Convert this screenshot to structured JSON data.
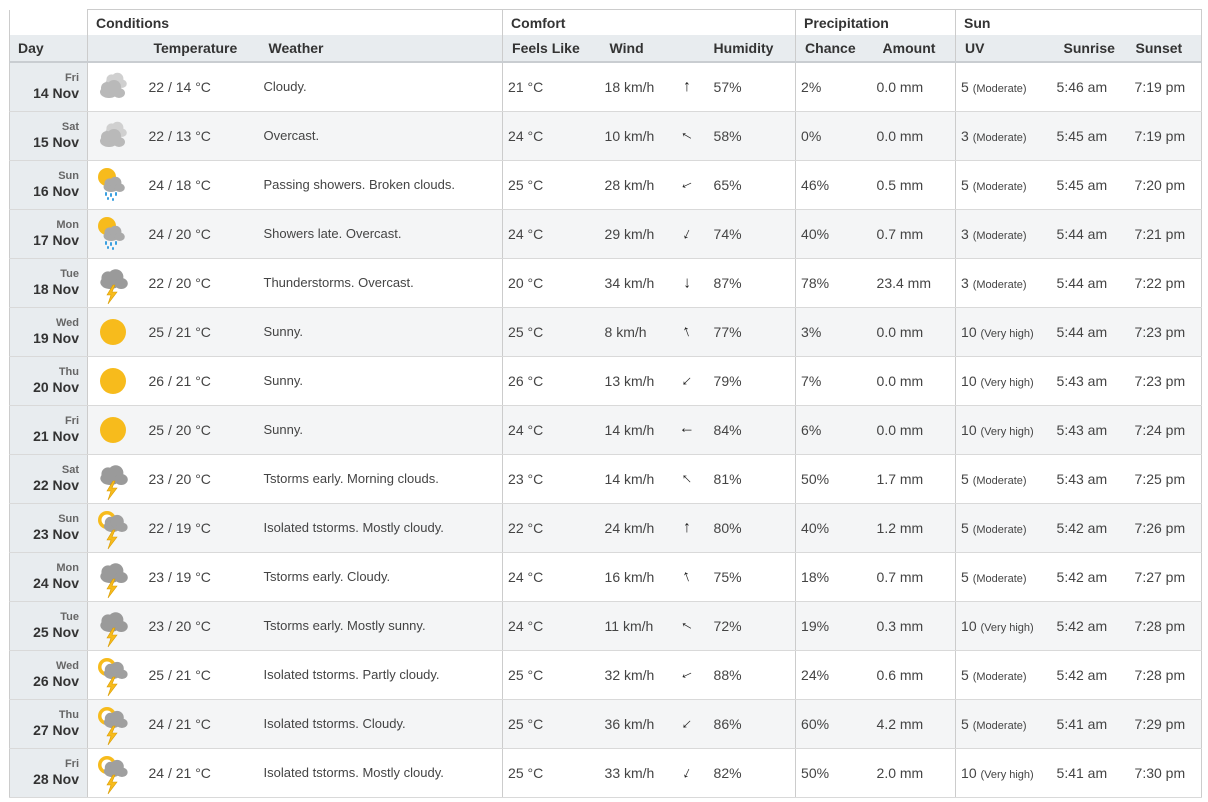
{
  "groups": {
    "conditions": "Conditions",
    "comfort": "Comfort",
    "precipitation": "Precipitation",
    "sun": "Sun"
  },
  "columns": {
    "day": "Day",
    "temperature": "Temperature",
    "weather": "Weather",
    "feels_like": "Feels Like",
    "wind": "Wind",
    "humidity": "Humidity",
    "chance": "Chance",
    "amount": "Amount",
    "uv": "UV",
    "sunrise": "Sunrise",
    "sunset": "Sunset"
  },
  "colors": {
    "header_bg": "#e8ecef",
    "row_alt": "#f4f5f6",
    "sun_yellow": "#f7bb1c",
    "cloud_gray": "#b5b5b5",
    "rain_blue": "#3aa0e0"
  },
  "days": [
    {
      "weekday": "Fri",
      "date": "14 Nov",
      "icon": "cloudy-icon",
      "temp": "22 / 14 °C",
      "weather": "Cloudy.",
      "feels": "21 °C",
      "wind": "18 km/h",
      "wind_dir_deg": 0,
      "humidity": "57%",
      "chance": "2%",
      "amount": "0.0 mm",
      "uv": "5",
      "uv_label": "(Moderate)",
      "sunrise": "5:46 am",
      "sunset": "7:19 pm"
    },
    {
      "weekday": "Sat",
      "date": "15 Nov",
      "icon": "cloudy-icon",
      "temp": "22 / 13 °C",
      "weather": "Overcast.",
      "feels": "24 °C",
      "wind": "10 km/h",
      "wind_dir_deg": -60,
      "humidity": "58%",
      "chance": "0%",
      "amount": "0.0 mm",
      "uv": "3",
      "uv_label": "(Moderate)",
      "sunrise": "5:45 am",
      "sunset": "7:19 pm"
    },
    {
      "weekday": "Sun",
      "date": "16 Nov",
      "icon": "sun-showers-icon",
      "temp": "24 / 18 °C",
      "weather": "Passing showers. Broken clouds.",
      "feels": "25 °C",
      "wind": "28 km/h",
      "wind_dir_deg": -115,
      "humidity": "65%",
      "chance": "46%",
      "amount": "0.5 mm",
      "uv": "5",
      "uv_label": "(Moderate)",
      "sunrise": "5:45 am",
      "sunset": "7:20 pm"
    },
    {
      "weekday": "Mon",
      "date": "17 Nov",
      "icon": "sun-showers-icon",
      "temp": "24 / 20 °C",
      "weather": "Showers late. Overcast.",
      "feels": "24 °C",
      "wind": "29 km/h",
      "wind_dir_deg": -155,
      "humidity": "74%",
      "chance": "40%",
      "amount": "0.7 mm",
      "uv": "3",
      "uv_label": "(Moderate)",
      "sunrise": "5:44 am",
      "sunset": "7:21 pm"
    },
    {
      "weekday": "Tue",
      "date": "18 Nov",
      "icon": "thunderstorm-icon",
      "temp": "22 / 20 °C",
      "weather": "Thunderstorms. Overcast.",
      "feels": "20 °C",
      "wind": "34 km/h",
      "wind_dir_deg": 180,
      "humidity": "87%",
      "chance": "78%",
      "amount": "23.4 mm",
      "uv": "3",
      "uv_label": "(Moderate)",
      "sunrise": "5:44 am",
      "sunset": "7:22 pm"
    },
    {
      "weekday": "Wed",
      "date": "19 Nov",
      "icon": "sun-icon",
      "temp": "25 / 21 °C",
      "weather": "Sunny.",
      "feels": "25 °C",
      "wind": "8 km/h",
      "wind_dir_deg": -20,
      "humidity": "77%",
      "chance": "3%",
      "amount": "0.0 mm",
      "uv": "10",
      "uv_label": "(Very high)",
      "sunrise": "5:44 am",
      "sunset": "7:23 pm"
    },
    {
      "weekday": "Thu",
      "date": "20 Nov",
      "icon": "sun-icon",
      "temp": "26 / 21 °C",
      "weather": "Sunny.",
      "feels": "26 °C",
      "wind": "13 km/h",
      "wind_dir_deg": -135,
      "humidity": "79%",
      "chance": "7%",
      "amount": "0.0 mm",
      "uv": "10",
      "uv_label": "(Very high)",
      "sunrise": "5:43 am",
      "sunset": "7:23 pm"
    },
    {
      "weekday": "Fri",
      "date": "21 Nov",
      "icon": "sun-icon",
      "temp": "25 / 20 °C",
      "weather": "Sunny.",
      "feels": "24 °C",
      "wind": "14 km/h",
      "wind_dir_deg": -90,
      "humidity": "84%",
      "chance": "6%",
      "amount": "0.0 mm",
      "uv": "10",
      "uv_label": "(Very high)",
      "sunrise": "5:43 am",
      "sunset": "7:24 pm"
    },
    {
      "weekday": "Sat",
      "date": "22 Nov",
      "icon": "thunderstorm-icon",
      "temp": "23 / 20 °C",
      "weather": "Tstorms early. Morning clouds.",
      "feels": "23 °C",
      "wind": "14 km/h",
      "wind_dir_deg": -45,
      "humidity": "81%",
      "chance": "50%",
      "amount": "1.7 mm",
      "uv": "5",
      "uv_label": "(Moderate)",
      "sunrise": "5:43 am",
      "sunset": "7:25 pm"
    },
    {
      "weekday": "Sun",
      "date": "23 Nov",
      "icon": "sun-thunderstorm-icon",
      "temp": "22 / 19 °C",
      "weather": "Isolated tstorms. Mostly cloudy.",
      "feels": "22 °C",
      "wind": "24 km/h",
      "wind_dir_deg": 0,
      "humidity": "80%",
      "chance": "40%",
      "amount": "1.2 mm",
      "uv": "5",
      "uv_label": "(Moderate)",
      "sunrise": "5:42 am",
      "sunset": "7:26 pm"
    },
    {
      "weekday": "Mon",
      "date": "24 Nov",
      "icon": "thunderstorm-icon",
      "temp": "23 / 19 °C",
      "weather": "Tstorms early. Cloudy.",
      "feels": "24 °C",
      "wind": "16 km/h",
      "wind_dir_deg": -20,
      "humidity": "75%",
      "chance": "18%",
      "amount": "0.7 mm",
      "uv": "5",
      "uv_label": "(Moderate)",
      "sunrise": "5:42 am",
      "sunset": "7:27 pm"
    },
    {
      "weekday": "Tue",
      "date": "25 Nov",
      "icon": "thunderstorm-icon",
      "temp": "23 / 20 °C",
      "weather": "Tstorms early. Mostly sunny.",
      "feels": "24 °C",
      "wind": "11 km/h",
      "wind_dir_deg": -60,
      "humidity": "72%",
      "chance": "19%",
      "amount": "0.3 mm",
      "uv": "10",
      "uv_label": "(Very high)",
      "sunrise": "5:42 am",
      "sunset": "7:28 pm"
    },
    {
      "weekday": "Wed",
      "date": "26 Nov",
      "icon": "sun-thunderstorm-icon",
      "temp": "25 / 21 °C",
      "weather": "Isolated tstorms. Partly cloudy.",
      "feels": "25 °C",
      "wind": "32 km/h",
      "wind_dir_deg": -115,
      "humidity": "88%",
      "chance": "24%",
      "amount": "0.6 mm",
      "uv": "5",
      "uv_label": "(Moderate)",
      "sunrise": "5:42 am",
      "sunset": "7:28 pm"
    },
    {
      "weekday": "Thu",
      "date": "27 Nov",
      "icon": "sun-thunderstorm-icon",
      "temp": "24 / 21 °C",
      "weather": "Isolated tstorms. Cloudy.",
      "feels": "25 °C",
      "wind": "36 km/h",
      "wind_dir_deg": -135,
      "humidity": "86%",
      "chance": "60%",
      "amount": "4.2 mm",
      "uv": "5",
      "uv_label": "(Moderate)",
      "sunrise": "5:41 am",
      "sunset": "7:29 pm"
    },
    {
      "weekday": "Fri",
      "date": "28 Nov",
      "icon": "sun-thunderstorm-icon",
      "temp": "24 / 21 °C",
      "weather": "Isolated tstorms. Mostly cloudy.",
      "feels": "25 °C",
      "wind": "33 km/h",
      "wind_dir_deg": -155,
      "humidity": "82%",
      "chance": "50%",
      "amount": "2.0 mm",
      "uv": "10",
      "uv_label": "(Very high)",
      "sunrise": "5:41 am",
      "sunset": "7:30 pm"
    }
  ]
}
